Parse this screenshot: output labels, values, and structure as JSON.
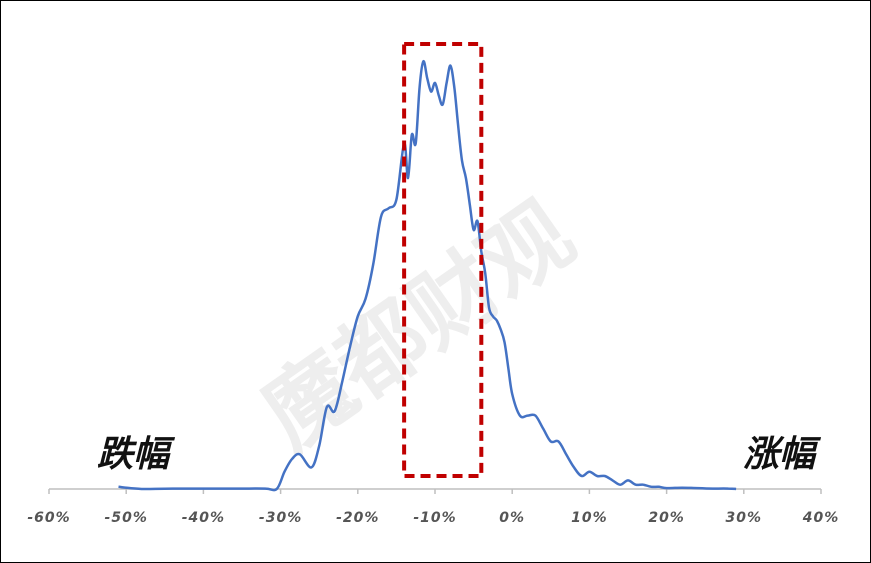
{
  "chart_data": {
    "type": "line",
    "title": "",
    "xlabel": "",
    "ylabel": "",
    "xlim": [
      -60,
      40
    ],
    "x_ticks": [
      -60,
      -50,
      -40,
      -30,
      -20,
      -10,
      0,
      10,
      20,
      30,
      40
    ],
    "x_tick_labels": [
      "-60%",
      "-50%",
      "-40%",
      "-30%",
      "-20%",
      "-10%",
      "0%",
      "10%",
      "20%",
      "30%",
      "40%"
    ],
    "y_axis_visible": false,
    "grid": false,
    "legend": "none",
    "line_color": "#4472C4",
    "series": [
      {
        "values_note": "",
        "x": [
          -51,
          -48,
          -44,
          -36,
          -32,
          -30.5,
          -29.5,
          -28.5,
          -27.5,
          -26,
          -25,
          -24,
          -23,
          -22,
          -21,
          -20,
          -19,
          -18,
          -17,
          -16,
          -15,
          -14,
          -13.5,
          -13,
          -12.5,
          -12,
          -11.5,
          -11,
          -10.5,
          -10,
          -9.5,
          -9,
          -8.5,
          -8,
          -7.5,
          -7,
          -6.5,
          -6,
          -5.5,
          -5,
          -4.5,
          -4,
          -3.5,
          -3,
          -2.5,
          -2,
          -1.5,
          -1,
          -0.5,
          0,
          1,
          2,
          3,
          4,
          5,
          6,
          7,
          8,
          9,
          10,
          11,
          12,
          13,
          14,
          15,
          16,
          17,
          18,
          19,
          20,
          22,
          24,
          26,
          28,
          29
        ],
        "y": [
          0.5,
          0,
          0.1,
          0.1,
          0.1,
          0,
          4,
          7,
          8,
          5,
          10,
          19,
          18,
          25,
          33,
          40,
          44,
          52,
          63,
          65,
          67,
          80,
          72,
          82,
          80,
          93,
          99,
          95,
          92,
          94,
          91,
          89,
          94,
          98,
          93,
          84,
          76,
          72,
          66,
          60,
          62,
          55,
          50,
          42,
          40,
          39,
          37,
          34,
          28,
          22,
          17,
          17,
          17,
          14,
          11,
          11,
          8,
          5,
          3,
          4,
          3,
          3,
          2,
          1,
          2,
          1,
          1,
          0.5,
          0.5,
          0.2,
          0.3,
          0.2,
          0.1,
          0.1,
          0
        ]
      }
    ],
    "highlight_box": {
      "x_range": [
        -14,
        -4
      ],
      "y_range": [
        3,
        103
      ],
      "color": "#C00000",
      "style": "dashed"
    }
  },
  "labels": {
    "left": "跌幅",
    "right": "涨幅",
    "watermark": "魔都财观"
  }
}
